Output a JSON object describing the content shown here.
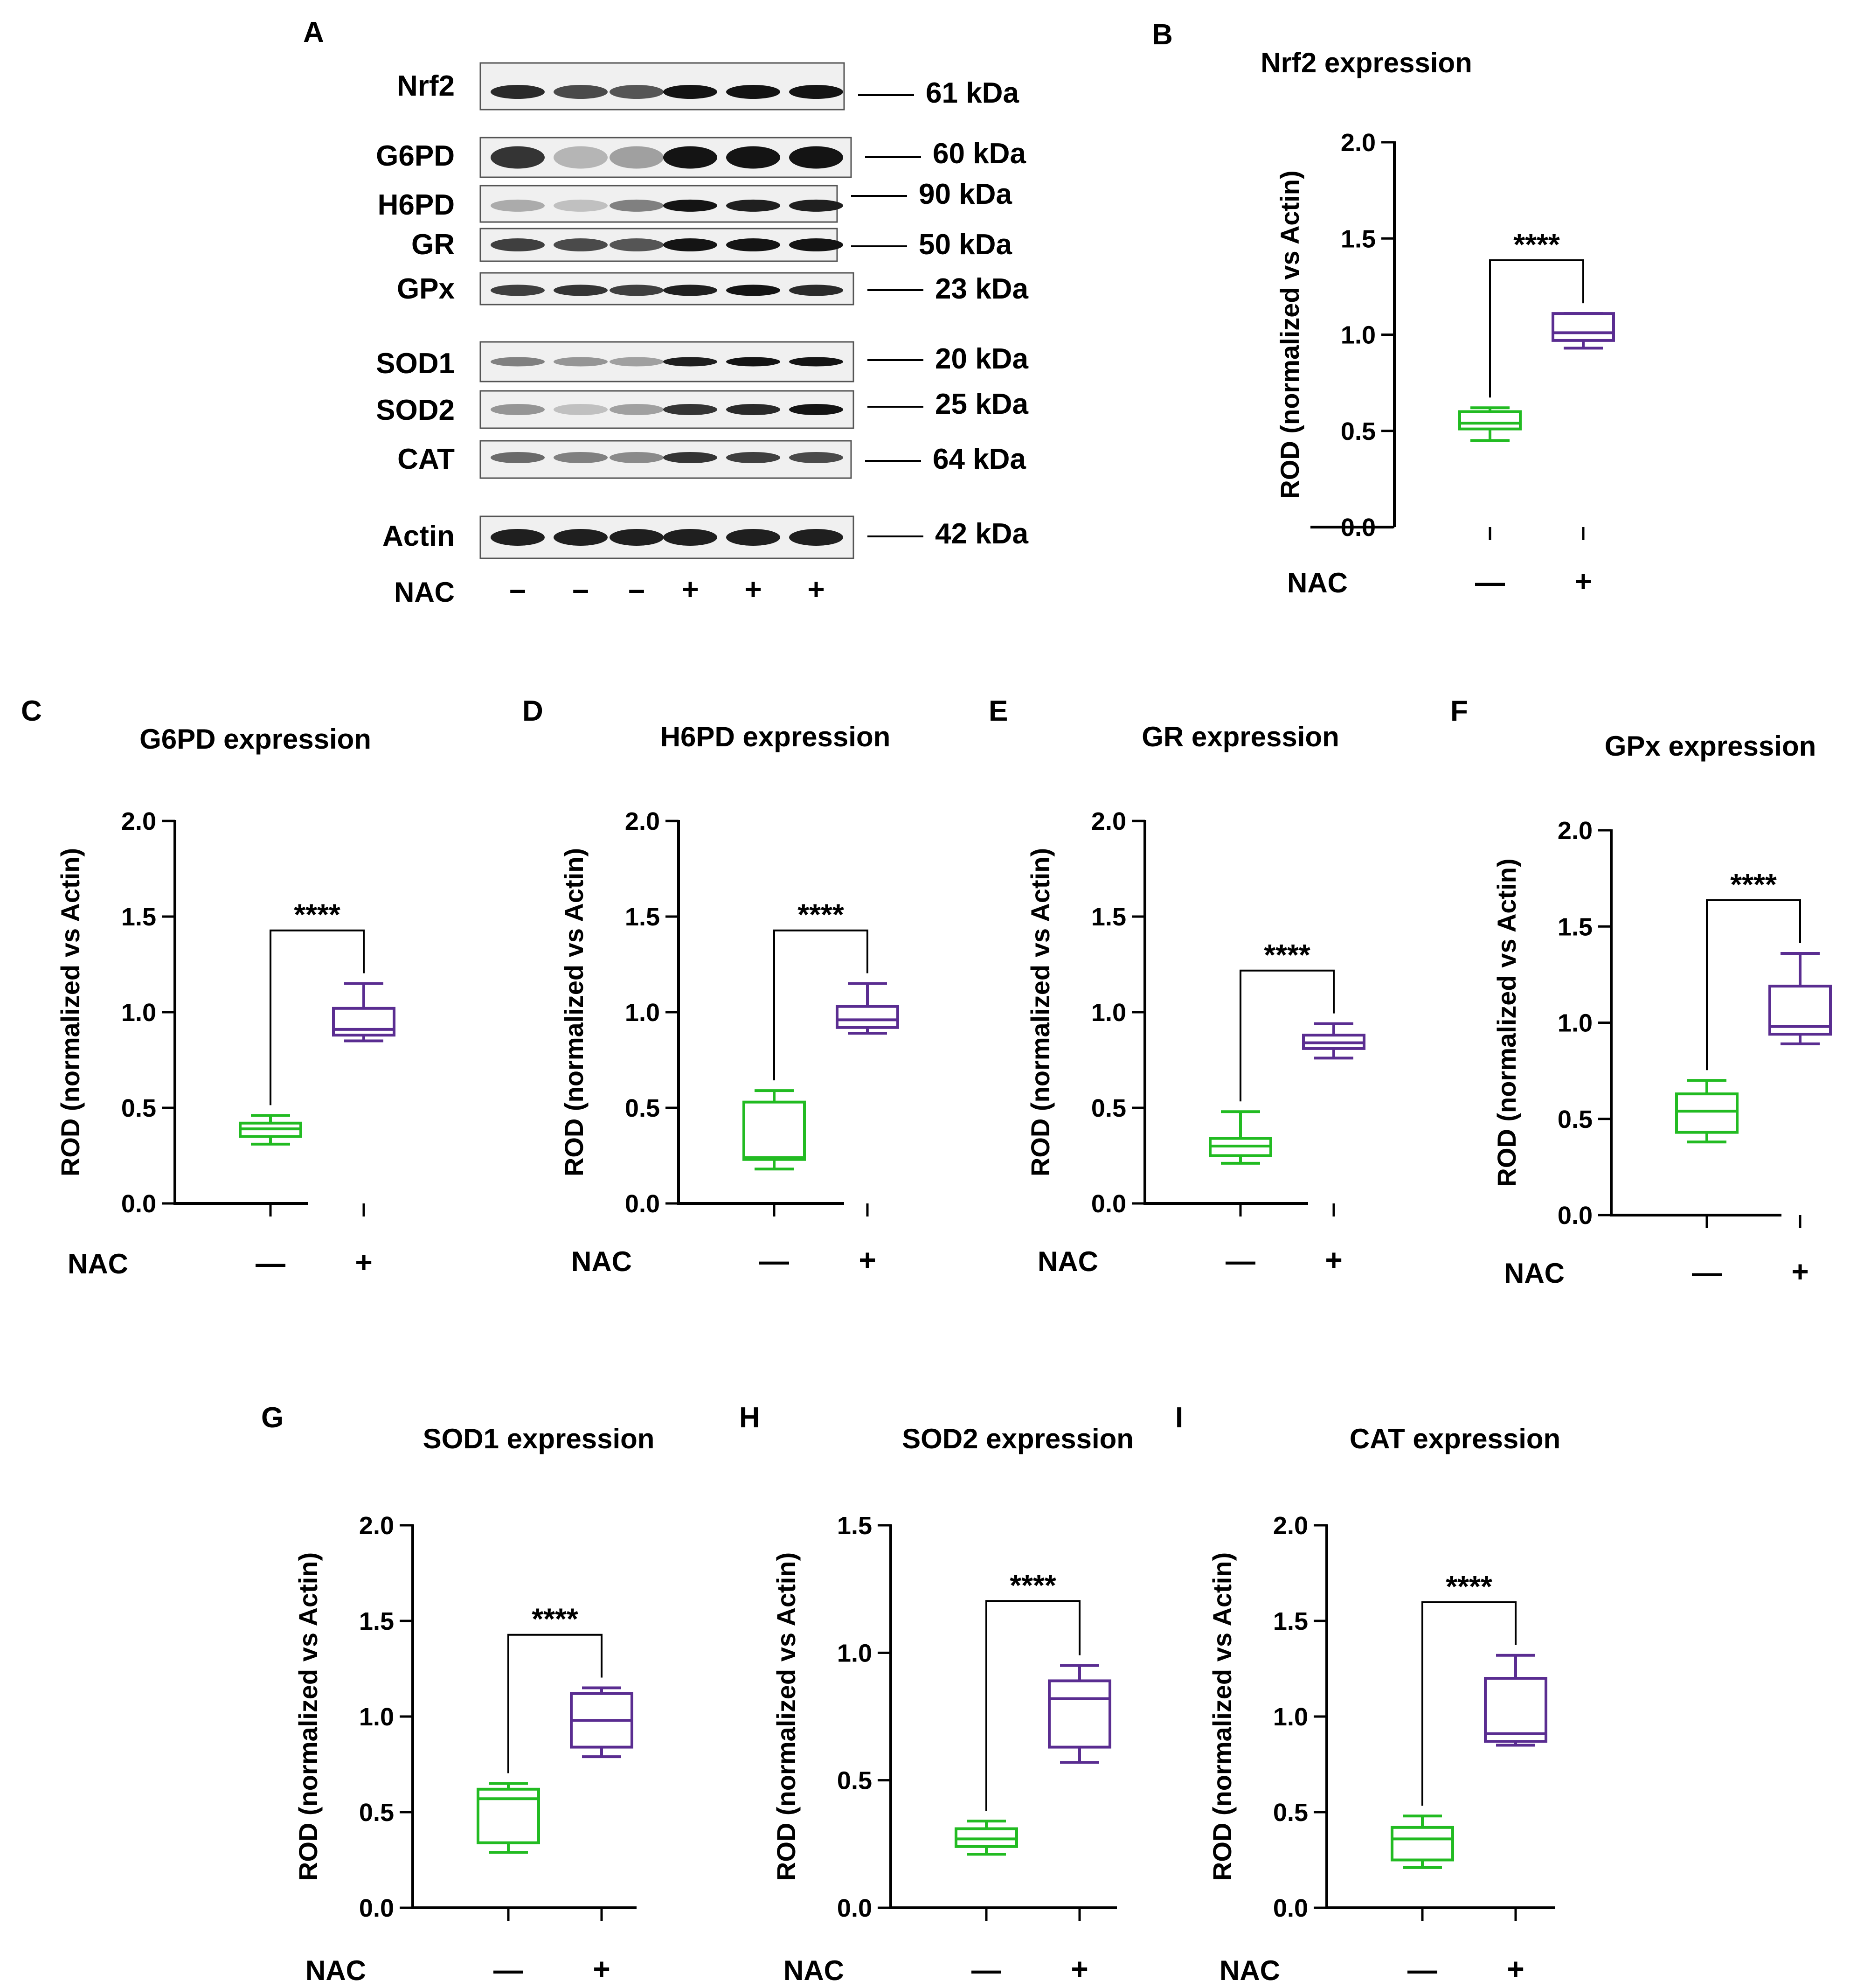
{
  "figure": {
    "panels_letters": [
      "A",
      "B",
      "C",
      "D",
      "E",
      "F",
      "G",
      "H",
      "I"
    ],
    "colors": {
      "control": "#22bb22",
      "nac": "#5a2d91",
      "axis": "#000000"
    }
  },
  "blot": {
    "letter": "A",
    "bands": [
      {
        "label": "Nrf2",
        "kda": "61 kDa"
      },
      {
        "label": "G6PD",
        "kda": "60 kDa"
      },
      {
        "label": "H6PD",
        "kda": "90 kDa"
      },
      {
        "label": "GR",
        "kda": "50 kDa"
      },
      {
        "label": "GPx",
        "kda": "23 kDa"
      },
      {
        "label": "SOD1",
        "kda": "20 kDa"
      },
      {
        "label": "SOD2",
        "kda": "25 kDa"
      },
      {
        "label": "CAT",
        "kda": "64 kDa"
      },
      {
        "label": "Actin",
        "kda": "42 kDa"
      }
    ],
    "nac_label": "NAC",
    "lanes": [
      "–",
      "–",
      "–",
      "+",
      "+",
      "+"
    ]
  },
  "chart_data": [
    {
      "letter": "B",
      "type": "box",
      "title": "Nrf2 expression",
      "ylabel": "ROD (normalized vs Actin)",
      "ylim": [
        0,
        2.0
      ],
      "yticks": [
        "0.0",
        "0.5",
        "1.0",
        "1.5",
        "2.0"
      ],
      "xlabel": "NAC",
      "categories": [
        "—",
        "+"
      ],
      "significance": "****",
      "series": [
        {
          "name": "—",
          "min": 0.45,
          "q1": 0.51,
          "median": 0.54,
          "q3": 0.6,
          "max": 0.62
        },
        {
          "name": "+",
          "min": 0.93,
          "q1": 0.97,
          "median": 1.01,
          "q3": 1.11,
          "max": 1.11
        }
      ]
    },
    {
      "letter": "C",
      "type": "box",
      "title": "G6PD expression",
      "ylabel": "ROD (normalized vs Actin)",
      "ylim": [
        0,
        2.0
      ],
      "yticks": [
        "0.0",
        "0.5",
        "1.0",
        "1.5",
        "2.0"
      ],
      "xlabel": "NAC",
      "categories": [
        "—",
        "+"
      ],
      "significance": "****",
      "series": [
        {
          "name": "—",
          "min": 0.31,
          "q1": 0.35,
          "median": 0.39,
          "q3": 0.42,
          "max": 0.46
        },
        {
          "name": "+",
          "min": 0.85,
          "q1": 0.88,
          "median": 0.91,
          "q3": 1.02,
          "max": 1.15
        }
      ]
    },
    {
      "letter": "D",
      "type": "box",
      "title": "H6PD expression",
      "ylabel": "ROD (normalized vs Actin)",
      "ylim": [
        0,
        2.0
      ],
      "yticks": [
        "0.0",
        "0.5",
        "1.0",
        "1.5",
        "2.0"
      ],
      "xlabel": "NAC",
      "categories": [
        "—",
        "+"
      ],
      "significance": "****",
      "series": [
        {
          "name": "—",
          "min": 0.18,
          "q1": 0.23,
          "median": 0.24,
          "q3": 0.53,
          "max": 0.59
        },
        {
          "name": "+",
          "min": 0.89,
          "q1": 0.92,
          "median": 0.96,
          "q3": 1.03,
          "max": 1.15
        }
      ]
    },
    {
      "letter": "E",
      "type": "box",
      "title": "GR expression",
      "ylabel": "ROD (normalized vs Actin)",
      "ylim": [
        0,
        2.0
      ],
      "yticks": [
        "0.0",
        "0.5",
        "1.0",
        "1.5",
        "2.0"
      ],
      "xlabel": "NAC",
      "categories": [
        "—",
        "+"
      ],
      "significance": "****",
      "series": [
        {
          "name": "—",
          "min": 0.21,
          "q1": 0.25,
          "median": 0.3,
          "q3": 0.34,
          "max": 0.48
        },
        {
          "name": "+",
          "min": 0.76,
          "q1": 0.81,
          "median": 0.84,
          "q3": 0.88,
          "max": 0.94
        }
      ]
    },
    {
      "letter": "F",
      "type": "box",
      "title": "GPx expression",
      "ylabel": "ROD (normalized vs Actin)",
      "ylim": [
        0,
        2.0
      ],
      "yticks": [
        "0.0",
        "0.5",
        "1.0",
        "1.5",
        "2.0"
      ],
      "xlabel": "NAC",
      "categories": [
        "—",
        "+"
      ],
      "significance": "****",
      "series": [
        {
          "name": "—",
          "min": 0.38,
          "q1": 0.43,
          "median": 0.54,
          "q3": 0.63,
          "max": 0.7
        },
        {
          "name": "+",
          "min": 0.89,
          "q1": 0.94,
          "median": 0.98,
          "q3": 1.19,
          "max": 1.36
        }
      ]
    },
    {
      "letter": "G",
      "type": "box",
      "title": "SOD1 expression",
      "ylabel": "ROD (normalized vs Actin)",
      "ylim": [
        0,
        2.0
      ],
      "yticks": [
        "0.0",
        "0.5",
        "1.0",
        "1.5",
        "2.0"
      ],
      "xlabel": "NAC",
      "categories": [
        "—",
        "+"
      ],
      "significance": "****",
      "series": [
        {
          "name": "—",
          "min": 0.29,
          "q1": 0.34,
          "median": 0.57,
          "q3": 0.62,
          "max": 0.65
        },
        {
          "name": "+",
          "min": 0.79,
          "q1": 0.84,
          "median": 0.98,
          "q3": 1.12,
          "max": 1.15
        }
      ]
    },
    {
      "letter": "H",
      "type": "box",
      "title": "SOD2 expression",
      "ylabel": "ROD (normalized vs Actin)",
      "ylim": [
        0,
        1.5
      ],
      "yticks": [
        "0.0",
        "0.5",
        "1.0",
        "1.5"
      ],
      "xlabel": "NAC",
      "categories": [
        "—",
        "+"
      ],
      "significance": "****",
      "series": [
        {
          "name": "—",
          "min": 0.21,
          "q1": 0.24,
          "median": 0.27,
          "q3": 0.31,
          "max": 0.34
        },
        {
          "name": "+",
          "min": 0.57,
          "q1": 0.63,
          "median": 0.82,
          "q3": 0.89,
          "max": 0.95
        }
      ]
    },
    {
      "letter": "I",
      "type": "box",
      "title": "CAT expression",
      "ylabel": "ROD (normalized vs Actin)",
      "ylim": [
        0,
        2.0
      ],
      "yticks": [
        "0.0",
        "0.5",
        "1.0",
        "1.5",
        "2.0"
      ],
      "xlabel": "NAC",
      "categories": [
        "—",
        "+"
      ],
      "significance": "****",
      "series": [
        {
          "name": "—",
          "min": 0.21,
          "q1": 0.25,
          "median": 0.36,
          "q3": 0.42,
          "max": 0.48
        },
        {
          "name": "+",
          "min": 0.85,
          "q1": 0.87,
          "median": 0.91,
          "q3": 1.2,
          "max": 1.32
        }
      ]
    }
  ]
}
